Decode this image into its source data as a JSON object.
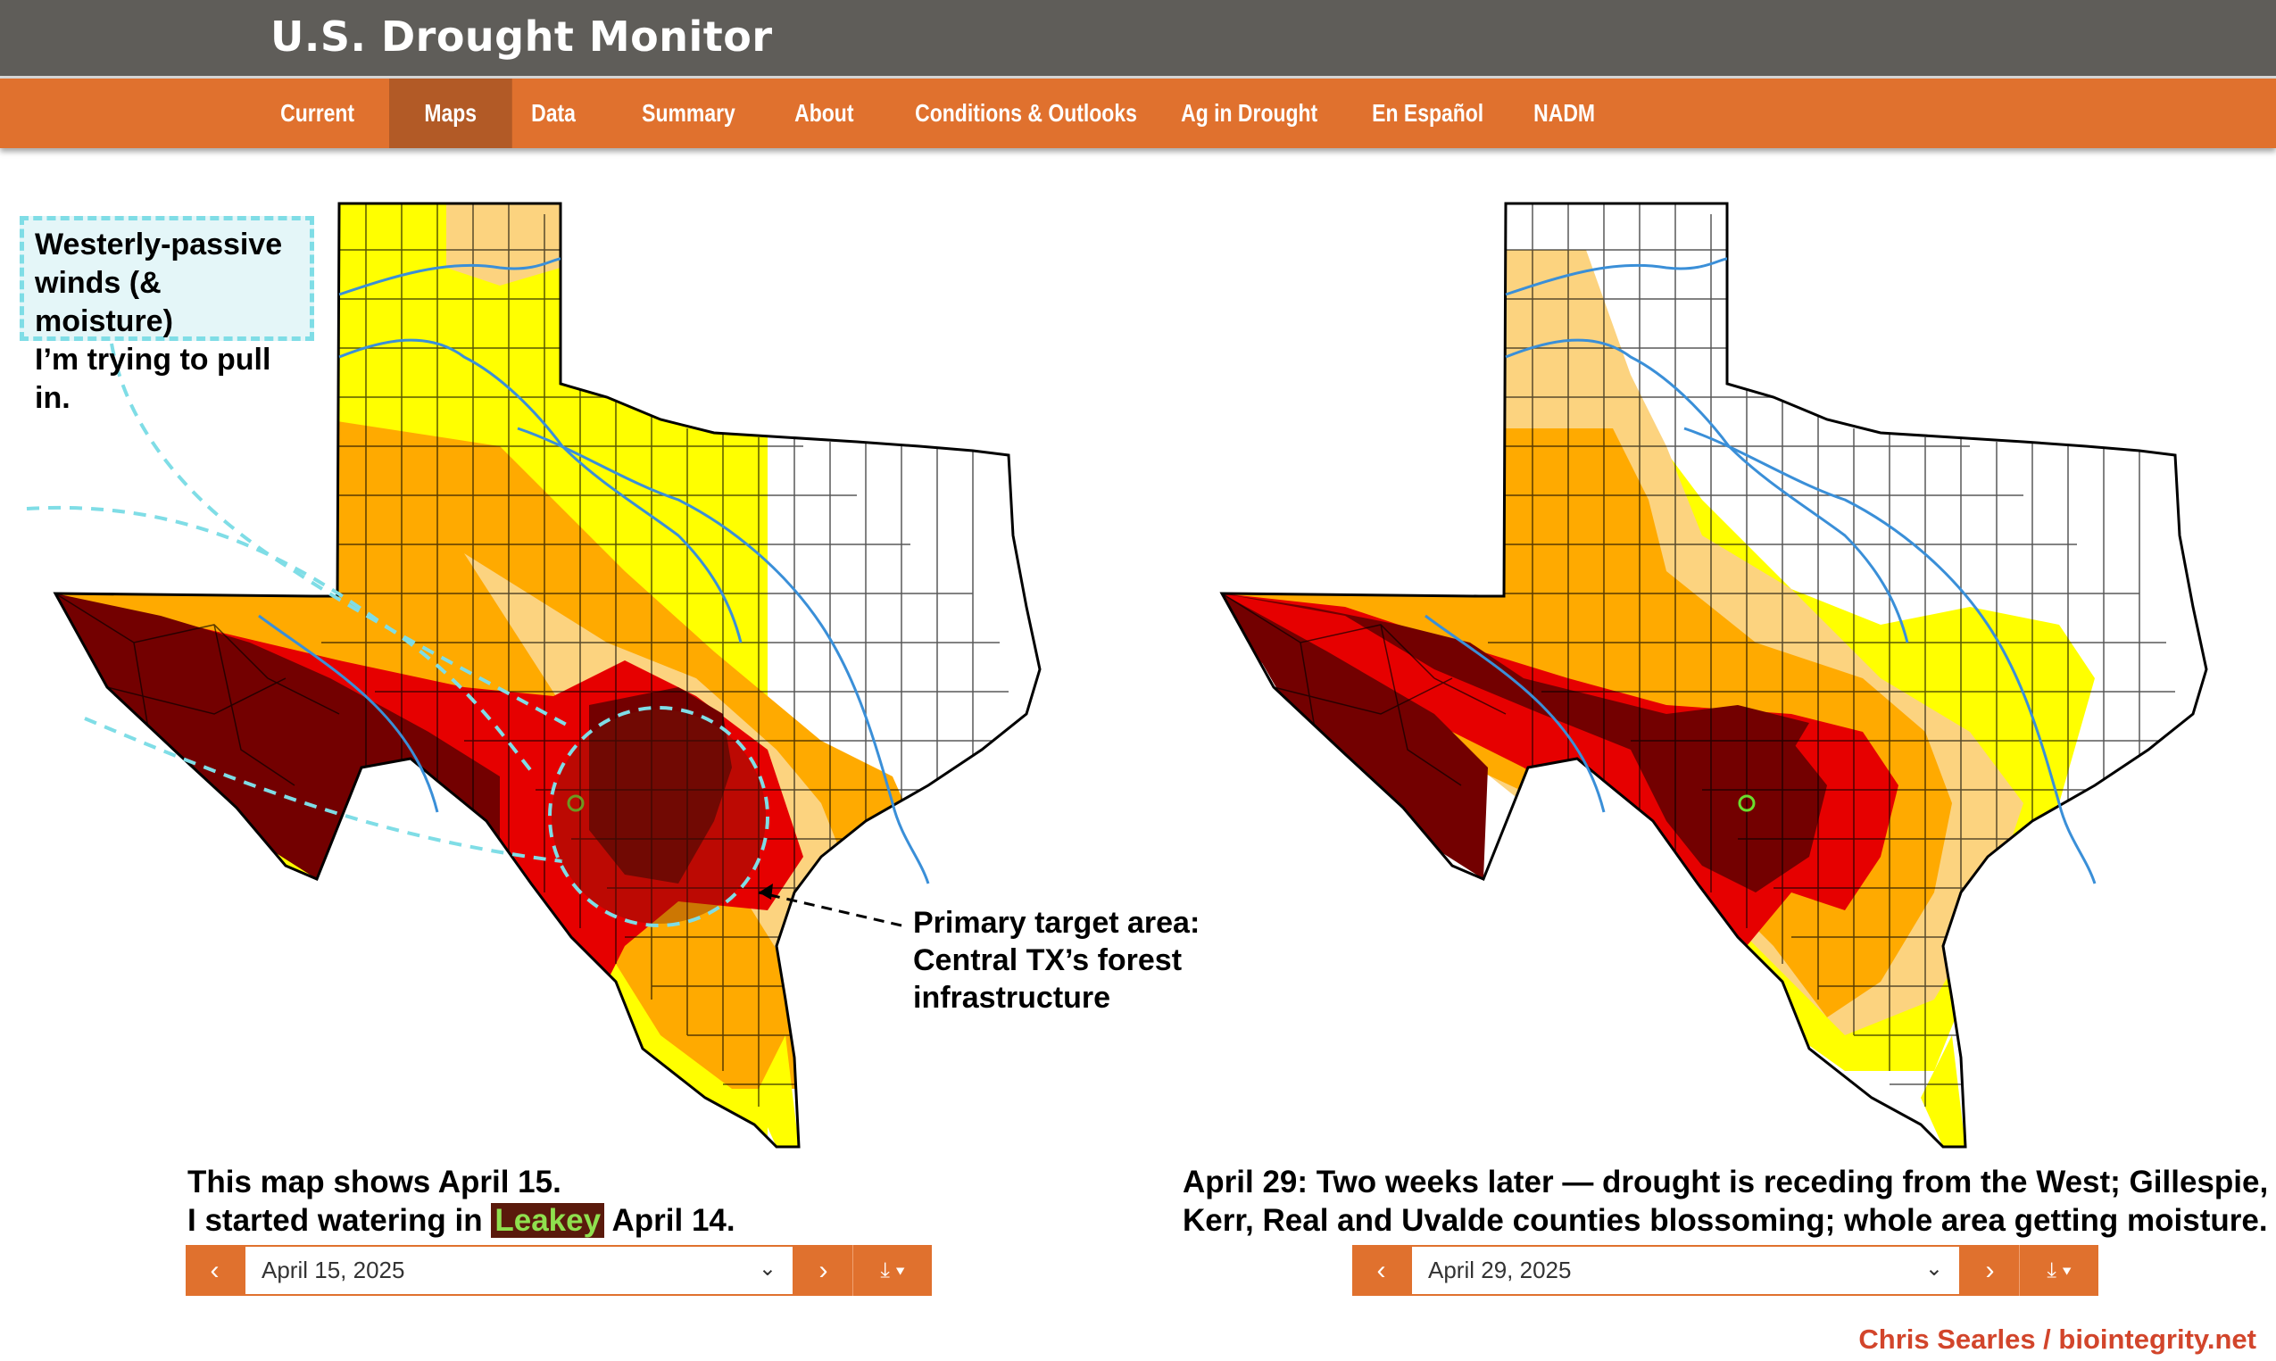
{
  "header": {
    "title": "U.S. Drought Monitor"
  },
  "nav": {
    "items": [
      {
        "label": "Current"
      },
      {
        "label": "Maps",
        "active": true
      },
      {
        "label": "Data"
      },
      {
        "label": "Summary"
      },
      {
        "label": "About"
      },
      {
        "label": "Conditions & Outlooks"
      },
      {
        "label": "Ag in Drought"
      },
      {
        "label": "En Español"
      },
      {
        "label": "NADM"
      }
    ]
  },
  "annotations": {
    "wind_callout": [
      "Westerly-passive",
      "winds (& moisture)",
      "I’m trying to pull in."
    ],
    "target_callout": [
      "Primary target area:",
      "Central TX’s forest",
      "infrastructure"
    ]
  },
  "left_map": {
    "caption_line1": "This map shows April 15.",
    "caption_line2_before": "I started watering in",
    "caption_highlight": "Leakey",
    "caption_line2_after": "April 14.",
    "selected_date": "April 15, 2025"
  },
  "right_map": {
    "caption_line1": "April 29: Two weeks later — drought is receding from the West; Gillespie,",
    "caption_line2": "Kerr, Real and Uvalde counties blossoming; whole area getting moisture.",
    "selected_date": "April 29, 2025"
  },
  "datebar_icons": {
    "prev": "chevron-left-icon",
    "next": "chevron-right-icon",
    "download": "download-icon",
    "dropdown": "chevron-down-icon"
  },
  "credit": "Chris Searles / biointegrity.net",
  "colors": {
    "header_bg": "#5f5d59",
    "nav_bg": "#e0712e",
    "nav_active_bg": "#b25a26",
    "D0_abnormally_dry": "#ffff00",
    "D1_moderate": "#fcd37f",
    "D2_severe": "#ffaa00",
    "D3_extreme": "#e60000",
    "D4_exceptional": "#730000",
    "annotation_cyan": "#7fdde6",
    "credit_red": "#d2452b"
  }
}
